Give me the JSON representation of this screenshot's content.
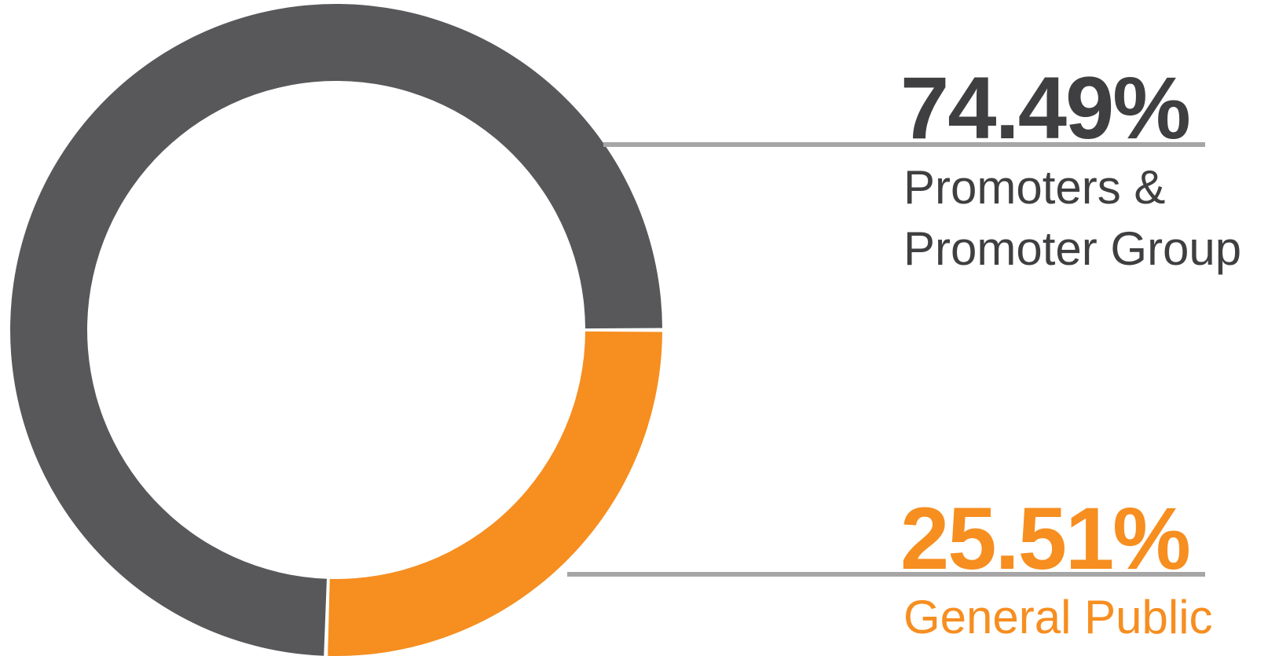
{
  "chart_data": {
    "type": "pie",
    "variant": "donut",
    "slices": [
      {
        "label_lines": [
          "Promoters &",
          "Promoter Group"
        ],
        "value": 74.49,
        "value_label": "74.49%",
        "color": "#58585b"
      },
      {
        "label_lines": [
          "General Public"
        ],
        "value": 25.51,
        "value_label": "25.51%",
        "color": "#f68e20"
      }
    ],
    "legend": "right",
    "title": ""
  }
}
